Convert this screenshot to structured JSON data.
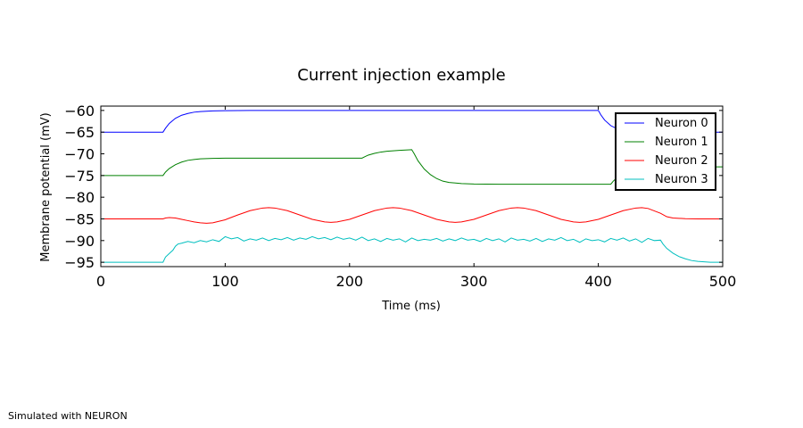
{
  "chart_data": {
    "type": "line",
    "title": "Current injection example",
    "xlabel": "Time (ms)",
    "ylabel": "Membrane potential (mV)",
    "xlim": [
      0,
      500
    ],
    "ylim": [
      -96,
      -59
    ],
    "xticks": [
      0,
      100,
      200,
      300,
      400,
      500
    ],
    "yticks": [
      -60,
      -65,
      -70,
      -75,
      -80,
      -85,
      -90,
      -95
    ],
    "grid": false,
    "legend": "top-right",
    "series": [
      {
        "name": "Neuron 0",
        "color": "#0000ff",
        "x": [
          0,
          50,
          52,
          55,
          60,
          65,
          70,
          75,
          80,
          90,
          100,
          120,
          400,
          402,
          405,
          410,
          415,
          420,
          425,
          430,
          440,
          450,
          460,
          480,
          500
        ],
        "y": [
          -65,
          -65,
          -64.1,
          -63.0,
          -61.8,
          -61.1,
          -60.7,
          -60.4,
          -60.25,
          -60.1,
          -60.05,
          -60,
          -60,
          -61.0,
          -62.2,
          -63.5,
          -64.2,
          -64.6,
          -64.8,
          -64.9,
          -65,
          -65,
          -65,
          -65,
          -65
        ]
      },
      {
        "name": "Neuron 1",
        "color": "#008000",
        "x": [
          0,
          50,
          52,
          55,
          60,
          65,
          70,
          75,
          80,
          90,
          100,
          120,
          210,
          212,
          215,
          220,
          225,
          230,
          240,
          250,
          252,
          255,
          260,
          265,
          270,
          275,
          280,
          290,
          300,
          320,
          400,
          410,
          412,
          415,
          420,
          425,
          430,
          440,
          450,
          500
        ],
        "y": [
          -75,
          -75,
          -74.2,
          -73.4,
          -72.5,
          -71.9,
          -71.5,
          -71.3,
          -71.15,
          -71.05,
          -71,
          -71,
          -71,
          -70.7,
          -70.3,
          -69.9,
          -69.6,
          -69.4,
          -69.2,
          -69.05,
          -70.0,
          -71.6,
          -73.5,
          -74.8,
          -75.7,
          -76.3,
          -76.6,
          -76.85,
          -76.95,
          -77,
          -77,
          -77,
          -76.3,
          -75.5,
          -74.5,
          -73.9,
          -73.5,
          -73.2,
          -73.05,
          -73
        ]
      },
      {
        "name": "Neuron 2",
        "color": "#ff0000",
        "x": [
          0,
          50,
          52,
          55,
          60,
          65,
          70,
          75,
          80,
          85,
          90,
          100,
          110,
          120,
          130,
          135,
          140,
          150,
          160,
          170,
          180,
          185,
          190,
          200,
          210,
          220,
          230,
          235,
          240,
          250,
          260,
          270,
          280,
          285,
          290,
          300,
          310,
          320,
          330,
          335,
          340,
          350,
          360,
          370,
          380,
          385,
          390,
          400,
          410,
          420,
          430,
          435,
          440,
          450,
          455,
          460,
          470,
          480,
          500
        ],
        "y": [
          -85,
          -85,
          -84.8,
          -84.7,
          -84.8,
          -85.1,
          -85.4,
          -85.7,
          -85.9,
          -86.0,
          -85.9,
          -85.2,
          -84.1,
          -83.1,
          -82.5,
          -82.4,
          -82.5,
          -83.1,
          -84.1,
          -85.1,
          -85.7,
          -85.8,
          -85.7,
          -85.1,
          -84.1,
          -83.1,
          -82.5,
          -82.4,
          -82.5,
          -83.1,
          -84.1,
          -85.1,
          -85.7,
          -85.8,
          -85.7,
          -85.1,
          -84.1,
          -83.1,
          -82.5,
          -82.4,
          -82.5,
          -83.1,
          -84.1,
          -85.1,
          -85.7,
          -85.8,
          -85.7,
          -85.1,
          -84.1,
          -83.1,
          -82.5,
          -82.4,
          -82.6,
          -83.7,
          -84.5,
          -84.8,
          -84.95,
          -85,
          -85
        ]
      },
      {
        "name": "Neuron 3",
        "color": "#00bfbf",
        "x": [
          0,
          50,
          52,
          55,
          58,
          60,
          62,
          65,
          70,
          75,
          80,
          85,
          90,
          95,
          100,
          105,
          110,
          115,
          120,
          125,
          130,
          135,
          140,
          145,
          150,
          155,
          160,
          165,
          170,
          175,
          180,
          185,
          190,
          195,
          200,
          205,
          210,
          215,
          220,
          225,
          230,
          235,
          240,
          245,
          250,
          255,
          260,
          265,
          270,
          275,
          280,
          285,
          290,
          295,
          300,
          305,
          310,
          315,
          320,
          325,
          330,
          335,
          340,
          345,
          350,
          355,
          360,
          365,
          370,
          375,
          380,
          385,
          390,
          395,
          400,
          405,
          410,
          415,
          420,
          425,
          430,
          435,
          440,
          445,
          450,
          452,
          455,
          460,
          465,
          470,
          475,
          480,
          490,
          500
        ],
        "y": [
          -95,
          -95,
          -93.8,
          -93.0,
          -92.2,
          -91.3,
          -90.8,
          -90.6,
          -90.2,
          -90.5,
          -90.0,
          -90.3,
          -89.8,
          -90.2,
          -89.1,
          -89.6,
          -89.3,
          -90.1,
          -89.6,
          -89.9,
          -89.4,
          -90.0,
          -89.5,
          -89.8,
          -89.3,
          -89.9,
          -89.4,
          -89.7,
          -89.1,
          -89.6,
          -89.3,
          -89.8,
          -89.2,
          -89.7,
          -89.4,
          -89.9,
          -89.2,
          -90.0,
          -89.6,
          -90.2,
          -89.5,
          -89.9,
          -89.6,
          -90.3,
          -89.4,
          -90.0,
          -89.7,
          -89.9,
          -89.5,
          -90.1,
          -89.6,
          -90.0,
          -89.4,
          -89.9,
          -89.7,
          -90.2,
          -89.5,
          -90.0,
          -89.6,
          -90.3,
          -89.4,
          -89.9,
          -89.7,
          -90.1,
          -89.5,
          -90.2,
          -89.6,
          -89.9,
          -89.3,
          -90.0,
          -89.7,
          -90.4,
          -89.6,
          -90.0,
          -89.8,
          -90.3,
          -89.5,
          -89.9,
          -89.4,
          -90.1,
          -89.6,
          -90.4,
          -89.5,
          -90.0,
          -89.9,
          -90.8,
          -91.8,
          -92.9,
          -93.7,
          -94.2,
          -94.6,
          -94.8,
          -95.0,
          -95
        ]
      }
    ]
  },
  "footer": "Simulated with NEURON"
}
